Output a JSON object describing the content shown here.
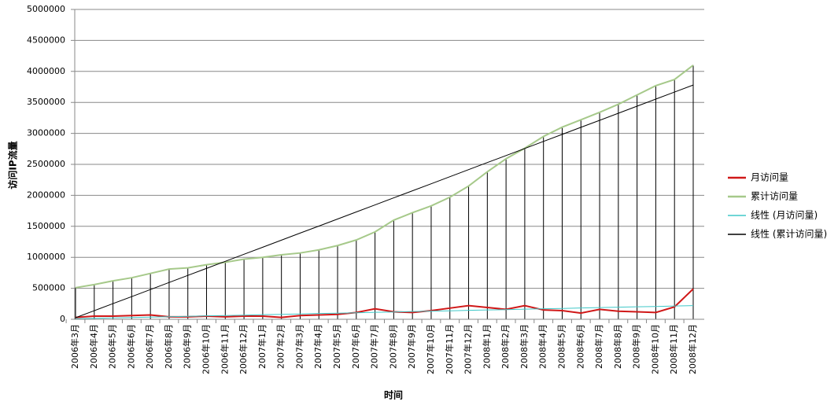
{
  "chart_data": {
    "type": "line",
    "x_label": "时间",
    "y_label": "访问IP流量",
    "categories": [
      "2006年3月",
      "2006年4月",
      "2006年5月",
      "2006年6月",
      "2006年7月",
      "2006年8月",
      "2006年9月",
      "2006年10月",
      "2006年11月",
      "2006年12月",
      "2007年1月",
      "2007年2月",
      "2007年3月",
      "2007年4月",
      "2007年5月",
      "2007年6月",
      "2007年7月",
      "2007年8月",
      "2007年9月",
      "2007年10月",
      "2007年11月",
      "2007年12月",
      "2008年1月",
      "2008年2月",
      "2008年3月",
      "2008年4月",
      "2008年5月",
      "2008年6月",
      "2008年7月",
      "2008年8月",
      "2008年9月",
      "2008年10月",
      "2008年11月",
      "2008年12月"
    ],
    "series": [
      {
        "name": "月访问量",
        "color": "#d01818",
        "values": [
          30000,
          50000,
          50000,
          60000,
          70000,
          40000,
          40000,
          50000,
          40000,
          50000,
          50000,
          30000,
          60000,
          70000,
          80000,
          110000,
          170000,
          120000,
          110000,
          140000,
          180000,
          220000,
          190000,
          160000,
          220000,
          150000,
          140000,
          100000,
          160000,
          130000,
          120000,
          110000,
          200000,
          490000
        ]
      },
      {
        "name": "累计访问量",
        "color": "#a6c98a",
        "drop_lines": true,
        "values": [
          510000,
          560000,
          620000,
          670000,
          740000,
          810000,
          830000,
          880000,
          920000,
          970000,
          1000000,
          1040000,
          1070000,
          1120000,
          1190000,
          1280000,
          1410000,
          1600000,
          1720000,
          1830000,
          1970000,
          2150000,
          2380000,
          2590000,
          2760000,
          2950000,
          3100000,
          3220000,
          3340000,
          3470000,
          3620000,
          3770000,
          3870000,
          4100000
        ]
      },
      {
        "name": "线性 (月访问量)",
        "color": "#40c8c8",
        "values": [
          10000,
          16000,
          23000,
          29000,
          35000,
          42000,
          48000,
          55000,
          61000,
          67000,
          74000,
          80000,
          86000,
          93000,
          99000,
          105000,
          112000,
          118000,
          125000,
          131000,
          137000,
          144000,
          150000,
          156000,
          163000,
          169000,
          175000,
          182000,
          188000,
          195000,
          201000,
          207000,
          214000,
          220000
        ]
      },
      {
        "name": "线性 (累计访问量)",
        "color": "#000000",
        "values": [
          25000,
          139000,
          253000,
          366000,
          480000,
          594000,
          708000,
          822000,
          935000,
          1049000,
          1163000,
          1277000,
          1391000,
          1504000,
          1618000,
          1732000,
          1846000,
          1960000,
          2073000,
          2187000,
          2301000,
          2415000,
          2529000,
          2642000,
          2756000,
          2870000,
          2984000,
          3098000,
          3211000,
          3325000,
          3439000,
          3553000,
          3667000,
          3780000
        ]
      }
    ],
    "ylim": [
      0,
      5000000
    ],
    "yticks": [
      0,
      500000,
      1000000,
      1500000,
      2000000,
      2500000,
      3000000,
      3500000,
      4000000,
      4500000,
      5000000
    ],
    "grid": true,
    "legend": "right"
  }
}
